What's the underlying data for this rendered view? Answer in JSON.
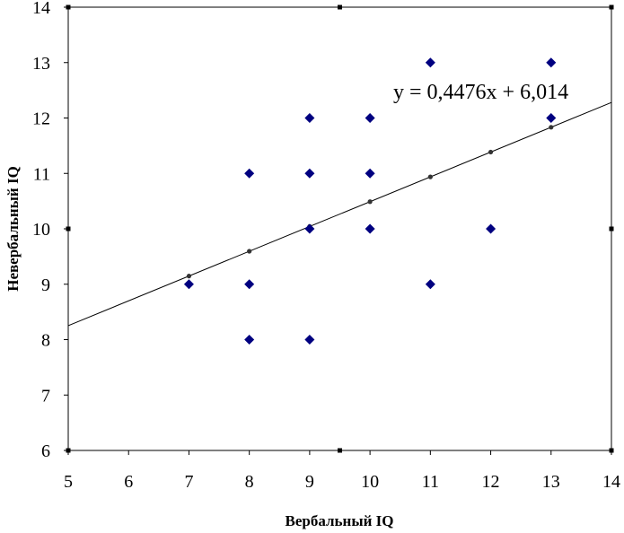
{
  "chart_data": {
    "type": "scatter",
    "xlabel": "Вербальный IQ",
    "ylabel": "Невербальный IQ",
    "xlim": [
      5,
      14
    ],
    "ylim": [
      6,
      14
    ],
    "x_ticks": [
      "5",
      "6",
      "7",
      "8",
      "9",
      "10",
      "11",
      "12",
      "13",
      "14"
    ],
    "y_ticks": [
      "6",
      "7",
      "8",
      "9",
      "10",
      "11",
      "12",
      "13",
      "14"
    ],
    "grid": false,
    "legend": "none",
    "colors": {
      "points": "#000080",
      "trendline": "#000000",
      "trend_markers": "#333333"
    },
    "series": [
      {
        "type": "scatter",
        "marker": "diamond",
        "points": [
          [
            7,
            9
          ],
          [
            8,
            11
          ],
          [
            8,
            9
          ],
          [
            8,
            8
          ],
          [
            9,
            12
          ],
          [
            9,
            11
          ],
          [
            9,
            10
          ],
          [
            9,
            8
          ],
          [
            10,
            12
          ],
          [
            10,
            11
          ],
          [
            10,
            10
          ],
          [
            11,
            13
          ],
          [
            11,
            9
          ],
          [
            12,
            10
          ],
          [
            13,
            13
          ],
          [
            13,
            12
          ]
        ]
      },
      {
        "type": "line",
        "label": "y = 0,4476x + 6,014",
        "slope": 0.4476,
        "intercept": 6.014,
        "fitted_x": [
          7,
          8,
          9,
          10,
          11,
          12,
          13
        ]
      }
    ]
  }
}
